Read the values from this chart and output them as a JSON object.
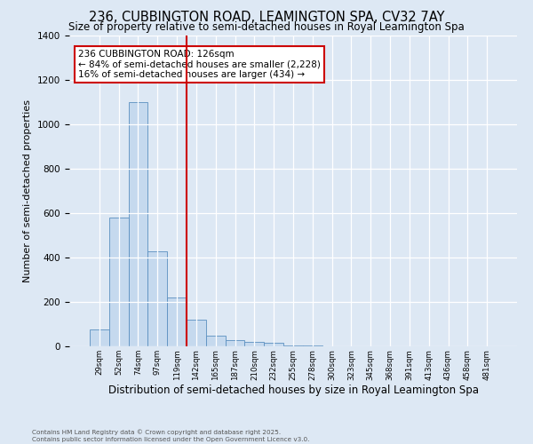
{
  "title1": "236, CUBBINGTON ROAD, LEAMINGTON SPA, CV32 7AY",
  "title2": "Size of property relative to semi-detached houses in Royal Leamington Spa",
  "xlabel": "Distribution of semi-detached houses by size in Royal Leamington Spa",
  "ylabel": "Number of semi-detached properties",
  "categories": [
    "29sqm",
    "52sqm",
    "74sqm",
    "97sqm",
    "119sqm",
    "142sqm",
    "165sqm",
    "187sqm",
    "210sqm",
    "232sqm",
    "255sqm",
    "278sqm",
    "300sqm",
    "323sqm",
    "345sqm",
    "368sqm",
    "391sqm",
    "413sqm",
    "436sqm",
    "458sqm",
    "481sqm"
  ],
  "values": [
    75,
    580,
    1100,
    430,
    220,
    120,
    50,
    30,
    20,
    15,
    5,
    5,
    0,
    0,
    0,
    0,
    0,
    0,
    0,
    0,
    0
  ],
  "bar_color": "#c5d9ee",
  "bar_edge_color": "#5a8fc0",
  "vline_x": 4.5,
  "vline_color": "#cc0000",
  "annotation_text": "236 CUBBINGTON ROAD: 126sqm\n← 84% of semi-detached houses are smaller (2,228)\n16% of semi-detached houses are larger (434) →",
  "annotation_box_color": "#cc0000",
  "bg_color": "#dde8f4",
  "plot_bg_color": "#dde8f4",
  "footer1": "Contains HM Land Registry data © Crown copyright and database right 2025.",
  "footer2": "Contains public sector information licensed under the Open Government Licence v3.0.",
  "ylim": [
    0,
    1400
  ],
  "title_fontsize": 10.5,
  "xlabel_fontsize": 8.5,
  "ylabel_fontsize": 8
}
